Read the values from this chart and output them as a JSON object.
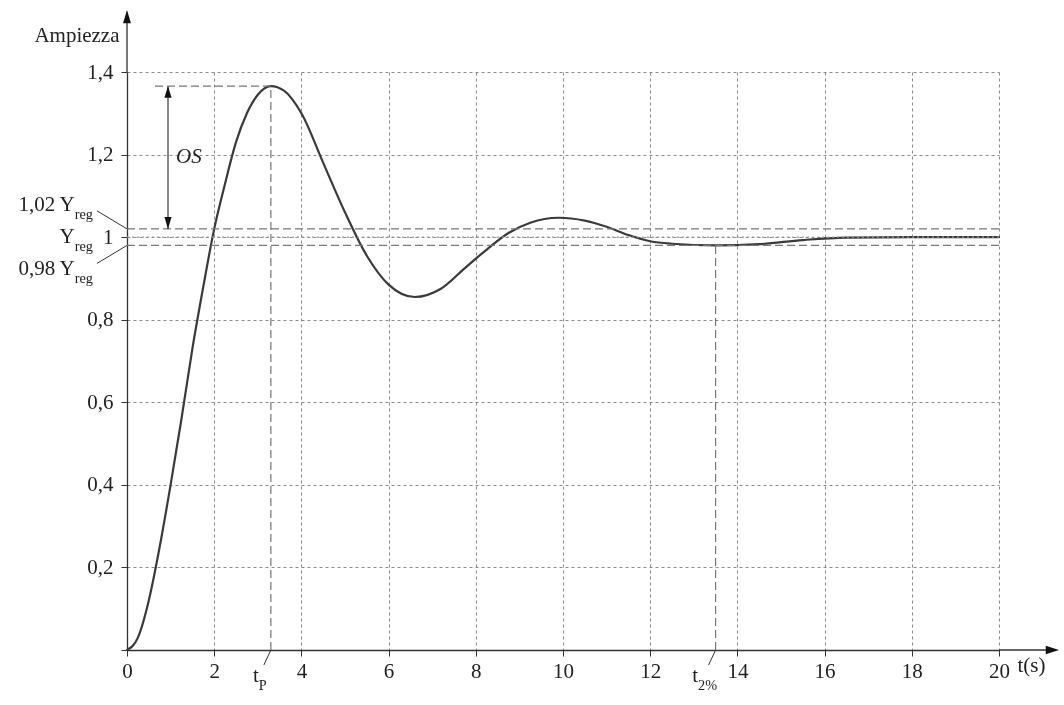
{
  "chart_data": {
    "type": "line",
    "xlabel": "t(s)",
    "ylabel": "Ampiezza",
    "x": [
      0,
      0.25,
      0.5,
      0.75,
      1,
      1.25,
      1.5,
      1.75,
      2,
      2.25,
      2.5,
      2.75,
      3,
      3.3,
      3.6,
      4,
      4.5,
      5,
      5.5,
      6,
      6.6,
      7.2,
      7.75,
      8.25,
      8.75,
      9.25,
      9.9,
      10.5,
      11,
      11.5,
      12,
      12.5,
      13.5,
      14.5,
      15.5,
      16.5,
      18,
      20
    ],
    "series": [
      {
        "color": "#3a3a3a",
        "values": [
          0,
          0.03,
          0.12,
          0.25,
          0.4,
          0.56,
          0.73,
          0.88,
          1.02,
          1.13,
          1.23,
          1.3,
          1.345,
          1.366,
          1.355,
          1.3,
          1.18,
          1.06,
          0.955,
          0.885,
          0.855,
          0.875,
          0.925,
          0.97,
          1.01,
          1.035,
          1.047,
          1.04,
          1.025,
          1.005,
          0.99,
          0.984,
          0.98,
          0.983,
          0.993,
          0.999,
          1.0,
          1.0
        ]
      }
    ],
    "xlim": [
      0,
      20
    ],
    "ylim": [
      0,
      1.4
    ],
    "xticks": [
      0,
      2,
      4,
      6,
      8,
      10,
      12,
      14,
      16,
      18,
      20
    ],
    "yticks": [
      {
        "value": 0,
        "label": null
      },
      {
        "value": 0.2,
        "label": "0,2"
      },
      {
        "value": 0.4,
        "label": "0,4"
      },
      {
        "value": 0.6,
        "label": "0,6"
      },
      {
        "value": 0.8,
        "label": "0,8"
      },
      1,
      {
        "value": 1.2,
        "label": "1,2"
      },
      {
        "value": 1.4,
        "label": "1,4"
      }
    ],
    "grid": true,
    "ref_lines": [
      {
        "axis": "y",
        "value": 1.02,
        "label": "1,02 Y$_{reg}$",
        "line_style": "dashed",
        "color": "#777777"
      },
      {
        "axis": "y",
        "value": 1,
        "label": "Y$_{reg}$",
        "line_style": "dotted",
        "color": "#999999"
      },
      {
        "axis": "y",
        "value": 0.98,
        "label": "0,98 Y$_{reg}$",
        "line_style": "dashed",
        "color": "#777777"
      },
      {
        "axis": "x",
        "value": 3.3,
        "label": "t$_{P}$",
        "line_style": "dashed",
        "color": "#777777"
      },
      {
        "axis": "x",
        "value": 13.5,
        "label": "t$_{2%}$",
        "line_style": "dashed",
        "color": "#777777"
      }
    ],
    "annotations": [
      "OS"
    ],
    "marker": "none",
    "line_style": "solid"
  }
}
